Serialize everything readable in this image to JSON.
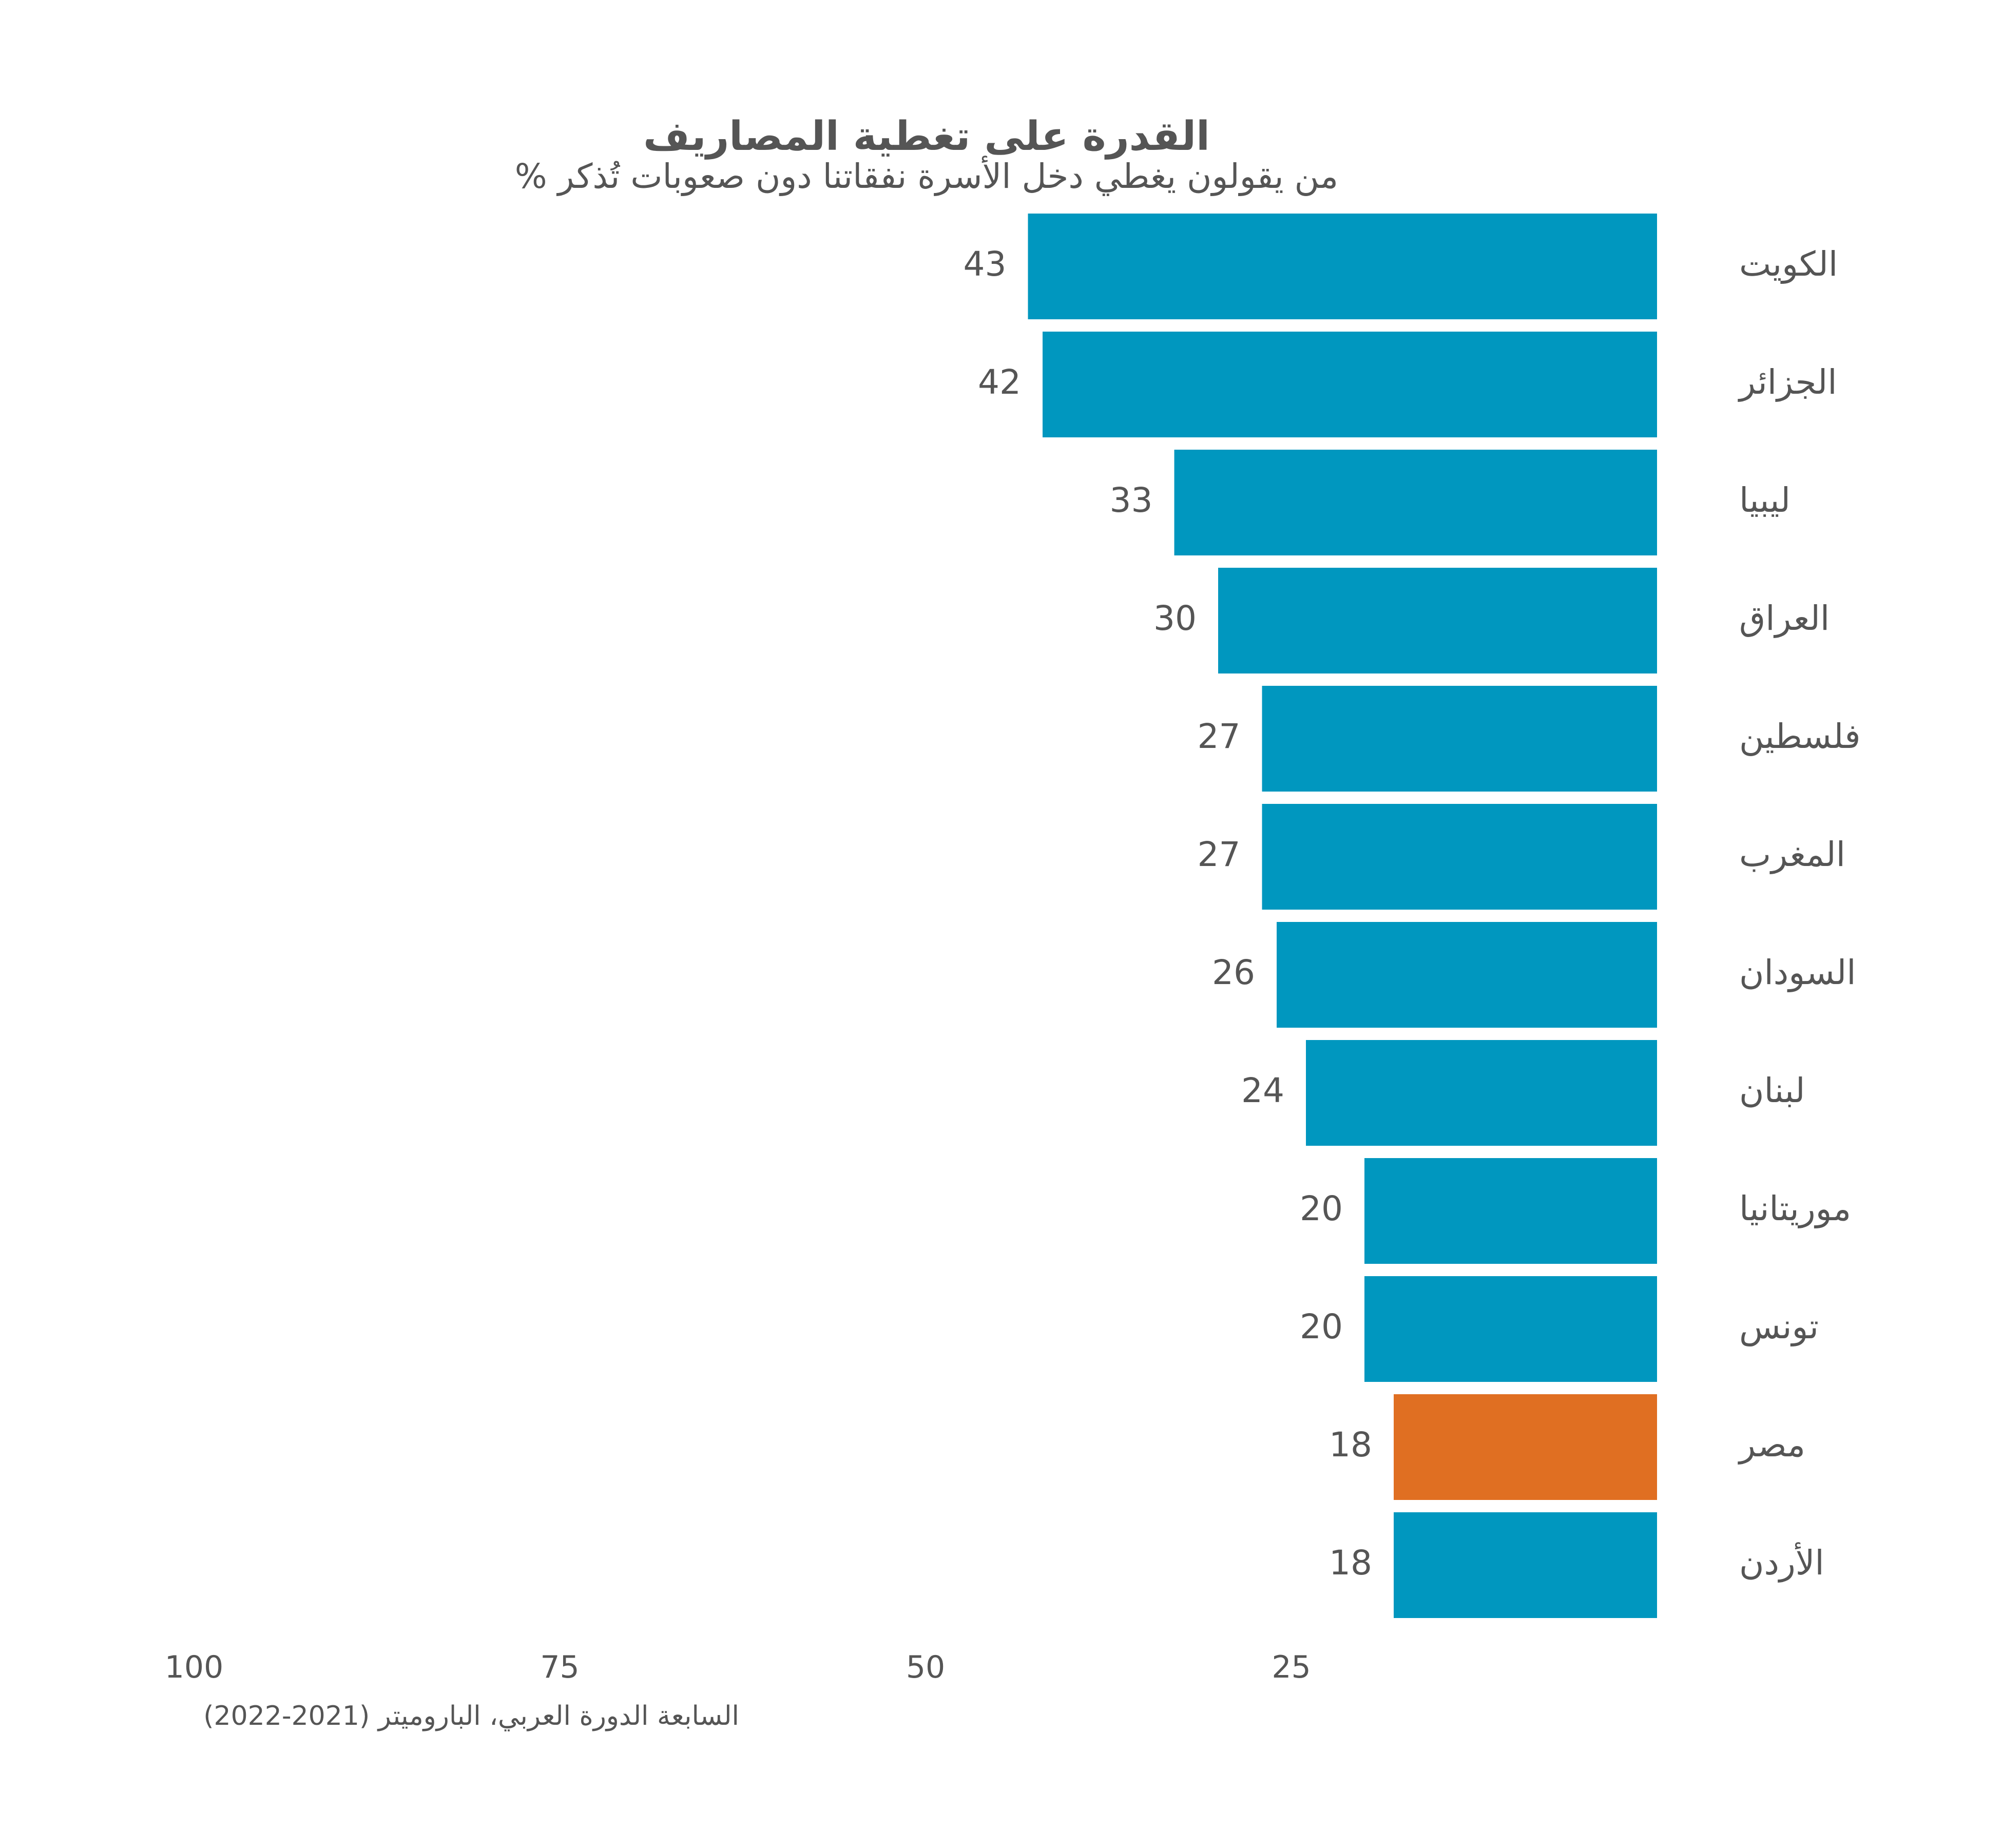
{
  "chart_data": {
    "type": "bar",
    "orientation": "horizontal",
    "title": "القدرة على تغطية المصاريف",
    "subtitle": "% من يقولون يغطي دخل الأسرة نفقاتنا دون صعوبات تُذكر",
    "source": "السابعة الدورة العربي، الباروميتر (2021-2022)",
    "categories": [
      "الكويت",
      "الجزائر",
      "ليبيا",
      "العراق",
      "فلسطين",
      "المغرب",
      "السودان",
      "لبنان",
      "موريتانيا",
      "تونس",
      "مصر",
      "الأردن"
    ],
    "values": [
      43,
      42,
      33,
      30,
      27,
      27,
      26,
      24,
      20,
      20,
      18,
      18
    ],
    "highlight": "مصر",
    "xlim": [
      0,
      100
    ],
    "x_reversed": true,
    "x_ticks": [
      100,
      75,
      50,
      25
    ],
    "grid": false,
    "legend": "none"
  },
  "colors": {
    "bar": "#0097bf",
    "highlight": "#e06f22",
    "text": "#555555"
  }
}
